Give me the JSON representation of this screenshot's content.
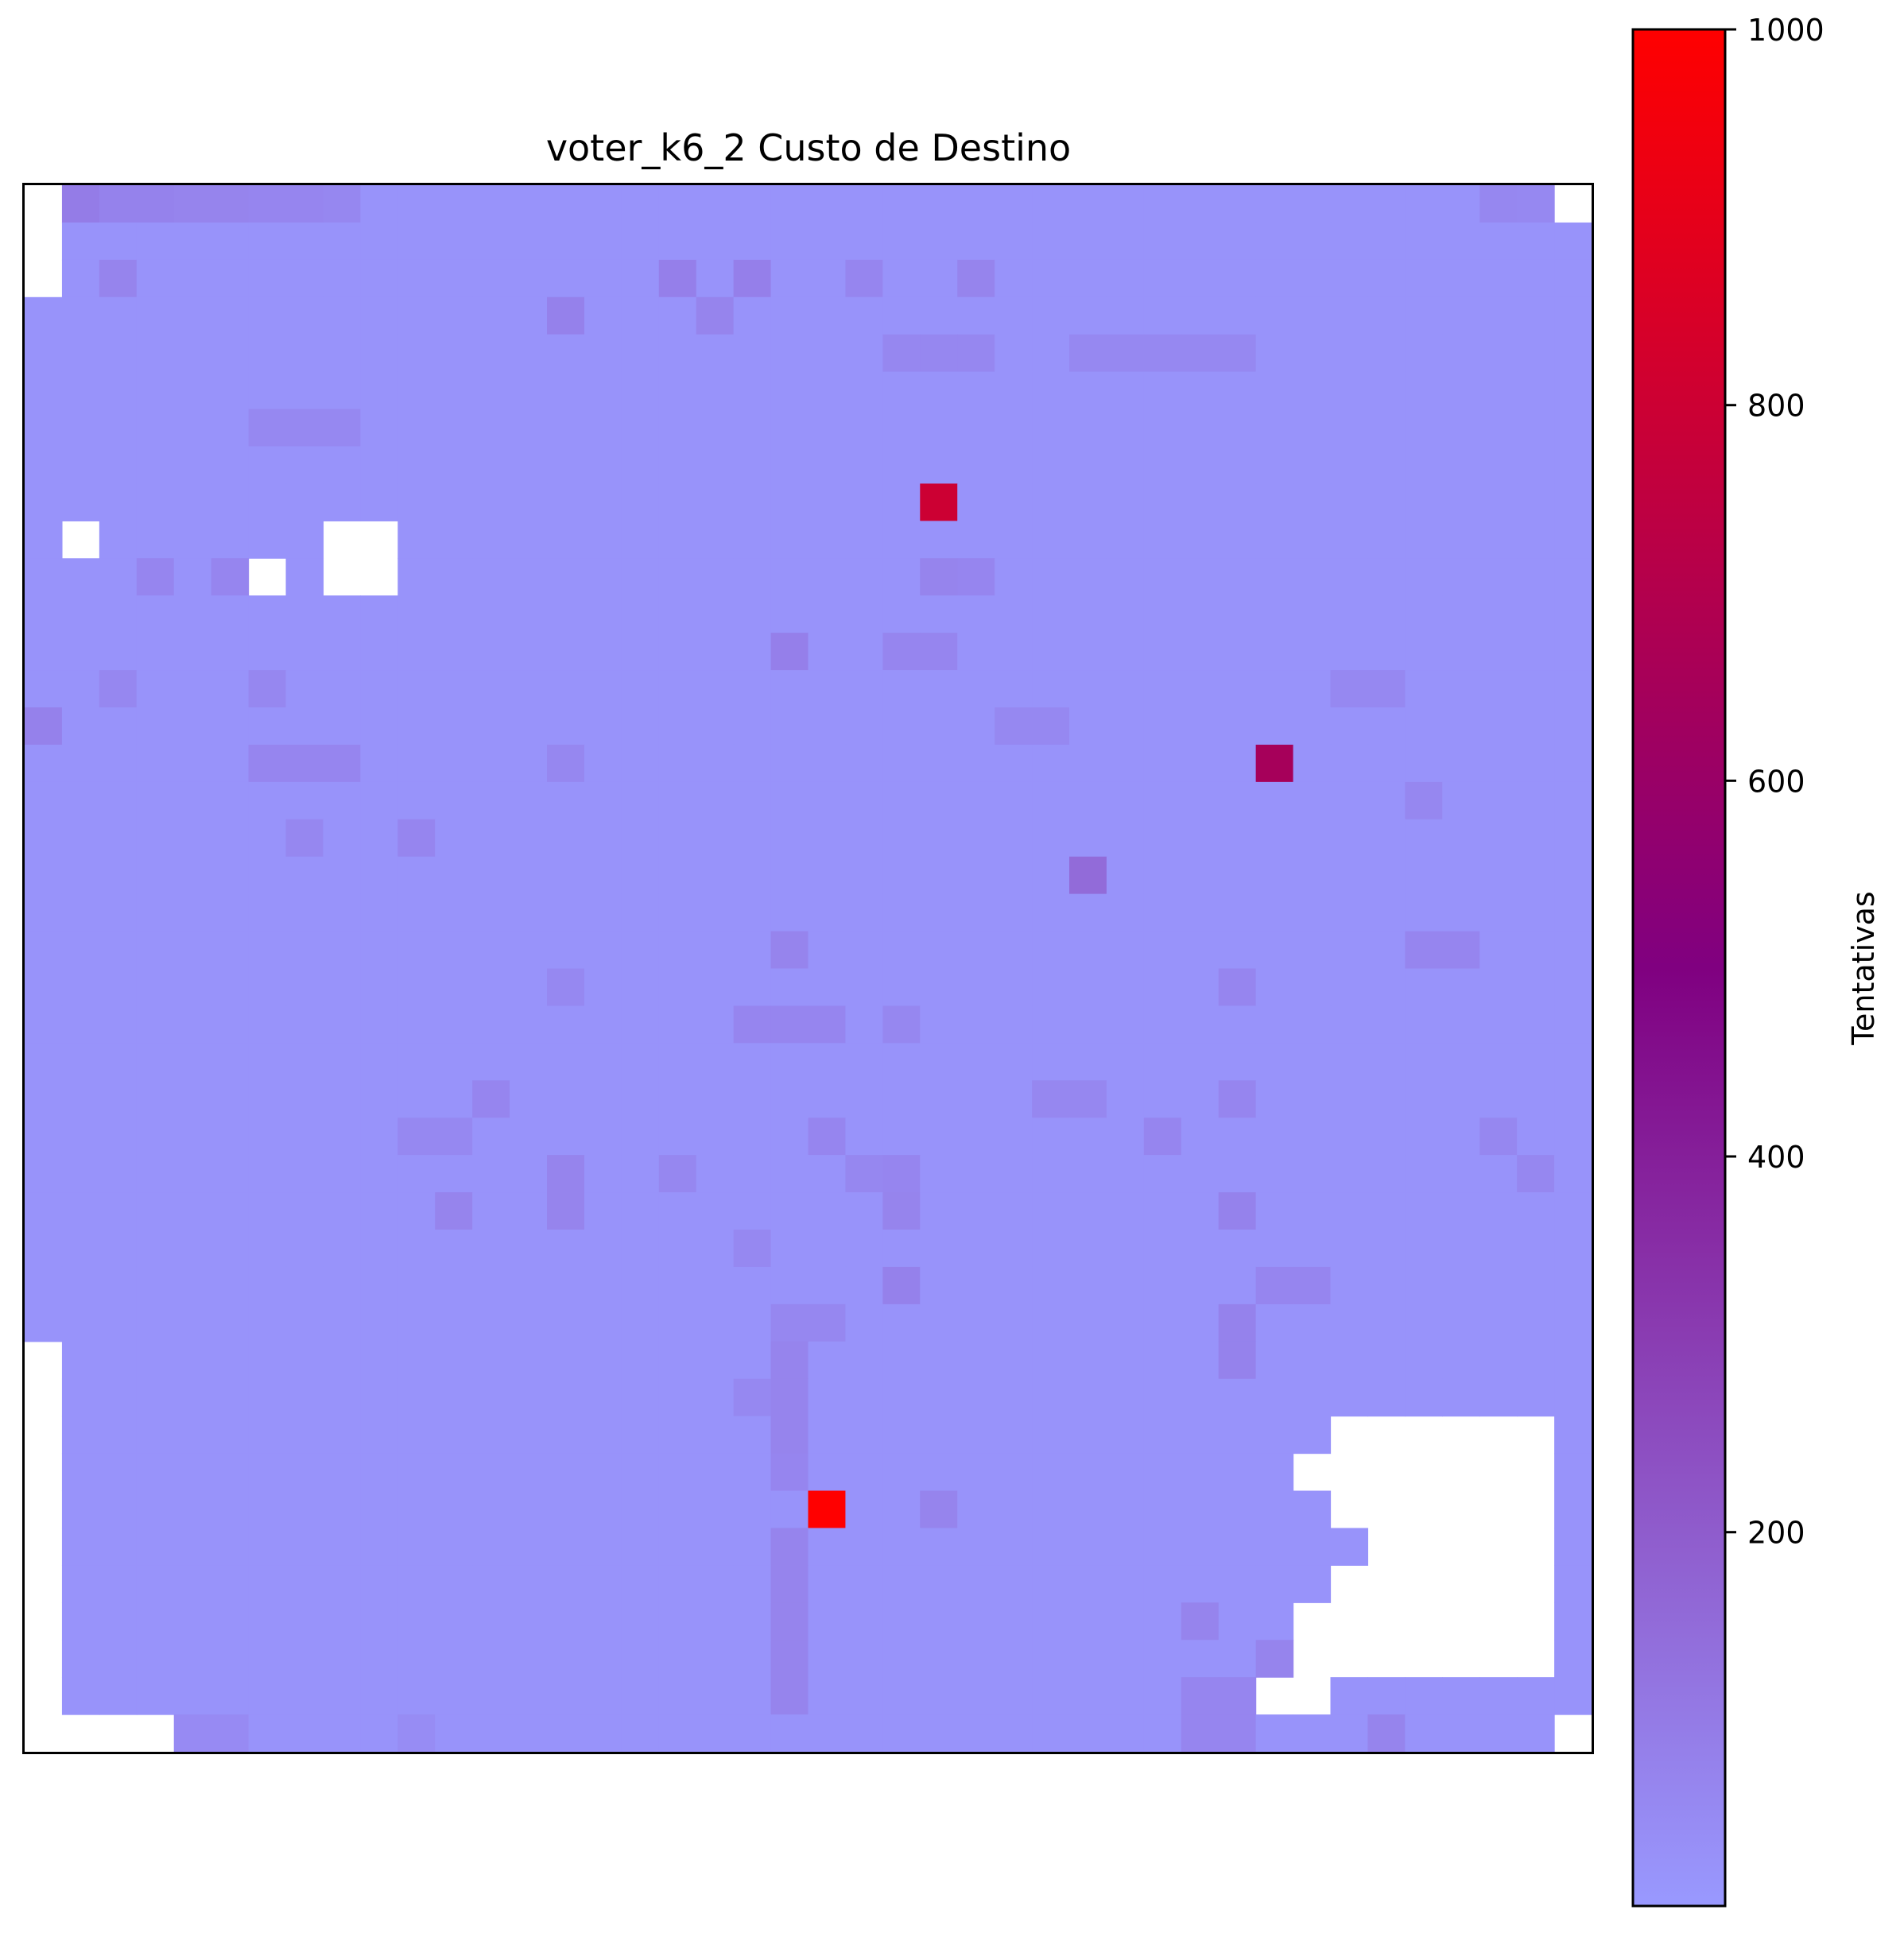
{
  "chart_data": {
    "type": "heatmap",
    "title": "voter_k6_2 Custo de Destino",
    "xlabel": "",
    "ylabel": "",
    "grid": false,
    "axis_ticks": false,
    "grid_size": [
      42,
      42
    ],
    "base_value": 20,
    "colorbar": {
      "label": "Tentativas",
      "range": [
        1,
        1000
      ],
      "ticks": [
        200,
        400,
        600,
        800,
        1000
      ],
      "colors": [
        "#9999ff",
        "#800080",
        "#ff0000"
      ],
      "placement": "right"
    },
    "empty_cells": [
      [
        0,
        0
      ],
      [
        1,
        0
      ],
      [
        2,
        0
      ],
      [
        0,
        41
      ],
      [
        9,
        1
      ],
      [
        10,
        6
      ],
      [
        9,
        8
      ],
      [
        10,
        8
      ],
      [
        9,
        9
      ],
      [
        10,
        9
      ],
      [
        31,
        0
      ],
      [
        32,
        0
      ],
      [
        33,
        0
      ],
      [
        34,
        0
      ],
      [
        35,
        0
      ],
      [
        36,
        0
      ],
      [
        37,
        0
      ],
      [
        38,
        0
      ],
      [
        39,
        0
      ],
      [
        40,
        0
      ],
      [
        41,
        0
      ],
      [
        41,
        1
      ],
      [
        41,
        2
      ],
      [
        41,
        3
      ],
      [
        41,
        41
      ],
      [
        41,
        2
      ],
      [
        41,
        3
      ],
      [
        33,
        35
      ],
      [
        33,
        36
      ],
      [
        33,
        37
      ],
      [
        33,
        38
      ],
      [
        33,
        39
      ],
      [
        33,
        40
      ],
      [
        34,
        34
      ],
      [
        34,
        35
      ],
      [
        34,
        36
      ],
      [
        34,
        37
      ],
      [
        34,
        38
      ],
      [
        34,
        39
      ],
      [
        34,
        40
      ],
      [
        35,
        35
      ],
      [
        35,
        36
      ],
      [
        35,
        37
      ],
      [
        35,
        38
      ],
      [
        35,
        39
      ],
      [
        35,
        40
      ],
      [
        36,
        36
      ],
      [
        36,
        37
      ],
      [
        36,
        38
      ],
      [
        36,
        39
      ],
      [
        36,
        40
      ],
      [
        37,
        35
      ],
      [
        37,
        36
      ],
      [
        37,
        37
      ],
      [
        37,
        38
      ],
      [
        37,
        39
      ],
      [
        37,
        40
      ],
      [
        38,
        34
      ],
      [
        38,
        35
      ],
      [
        38,
        36
      ],
      [
        38,
        37
      ],
      [
        38,
        38
      ],
      [
        38,
        39
      ],
      [
        38,
        40
      ],
      [
        39,
        34
      ],
      [
        39,
        35
      ],
      [
        39,
        36
      ],
      [
        39,
        37
      ],
      [
        39,
        38
      ],
      [
        39,
        39
      ],
      [
        39,
        40
      ],
      [
        40,
        33
      ],
      [
        40,
        34
      ]
    ],
    "cells": [
      [
        8,
        24,
        800
      ],
      [
        15,
        33,
        650
      ],
      [
        35,
        21,
        1000
      ],
      [
        18,
        28,
        150
      ],
      [
        0,
        1,
        95
      ],
      [
        0,
        2,
        75
      ],
      [
        0,
        3,
        75
      ],
      [
        0,
        4,
        70
      ],
      [
        0,
        5,
        70
      ],
      [
        0,
        6,
        65
      ],
      [
        0,
        7,
        65
      ],
      [
        0,
        8,
        60
      ],
      [
        0,
        39,
        60
      ],
      [
        0,
        40,
        55
      ],
      [
        2,
        2,
        70
      ],
      [
        2,
        17,
        85
      ],
      [
        2,
        19,
        85
      ],
      [
        2,
        22,
        65
      ],
      [
        2,
        25,
        70
      ],
      [
        3,
        14,
        80
      ],
      [
        3,
        18,
        70
      ],
      [
        4,
        23,
        60
      ],
      [
        4,
        24,
        60
      ],
      [
        4,
        25,
        60
      ],
      [
        4,
        28,
        55
      ],
      [
        4,
        29,
        55
      ],
      [
        4,
        30,
        55
      ],
      [
        4,
        31,
        55
      ],
      [
        4,
        32,
        55
      ],
      [
        6,
        6,
        55
      ],
      [
        6,
        7,
        55
      ],
      [
        6,
        8,
        55
      ],
      [
        10,
        3,
        65
      ],
      [
        10,
        5,
        65
      ],
      [
        10,
        24,
        70
      ],
      [
        10,
        25,
        65
      ],
      [
        12,
        20,
        85
      ],
      [
        12,
        23,
        65
      ],
      [
        12,
        24,
        65
      ],
      [
        13,
        2,
        60
      ],
      [
        13,
        6,
        60
      ],
      [
        13,
        35,
        55
      ],
      [
        13,
        36,
        55
      ],
      [
        14,
        0,
        80
      ],
      [
        14,
        26,
        55
      ],
      [
        14,
        27,
        55
      ],
      [
        15,
        6,
        65
      ],
      [
        15,
        7,
        65
      ],
      [
        15,
        8,
        65
      ],
      [
        15,
        14,
        60
      ],
      [
        16,
        37,
        60
      ],
      [
        17,
        7,
        60
      ],
      [
        17,
        10,
        65
      ],
      [
        20,
        20,
        70
      ],
      [
        20,
        37,
        65
      ],
      [
        20,
        38,
        65
      ],
      [
        21,
        14,
        55
      ],
      [
        21,
        32,
        65
      ],
      [
        22,
        19,
        65
      ],
      [
        22,
        20,
        65
      ],
      [
        22,
        21,
        65
      ],
      [
        22,
        23,
        60
      ],
      [
        24,
        12,
        65
      ],
      [
        24,
        27,
        60
      ],
      [
        24,
        28,
        60
      ],
      [
        24,
        32,
        65
      ],
      [
        25,
        10,
        55
      ],
      [
        25,
        11,
        55
      ],
      [
        25,
        21,
        65
      ],
      [
        25,
        30,
        65
      ],
      [
        25,
        39,
        60
      ],
      [
        26,
        14,
        70
      ],
      [
        26,
        17,
        60
      ],
      [
        26,
        22,
        60
      ],
      [
        26,
        23,
        65
      ],
      [
        26,
        40,
        60
      ],
      [
        27,
        11,
        70
      ],
      [
        27,
        14,
        70
      ],
      [
        27,
        23,
        70
      ],
      [
        27,
        32,
        75
      ],
      [
        28,
        19,
        55
      ],
      [
        29,
        23,
        80
      ],
      [
        29,
        33,
        65
      ],
      [
        29,
        34,
        65
      ],
      [
        30,
        20,
        60
      ],
      [
        30,
        21,
        60
      ],
      [
        30,
        32,
        75
      ],
      [
        31,
        20,
        70
      ],
      [
        31,
        32,
        75
      ],
      [
        32,
        19,
        55
      ],
      [
        32,
        20,
        70
      ],
      [
        33,
        20,
        70
      ],
      [
        34,
        20,
        65
      ],
      [
        35,
        24,
        70
      ],
      [
        36,
        20,
        70
      ],
      [
        37,
        20,
        70
      ],
      [
        38,
        20,
        70
      ],
      [
        38,
        31,
        70
      ],
      [
        39,
        20,
        70
      ],
      [
        39,
        33,
        70
      ],
      [
        40,
        20,
        70
      ],
      [
        40,
        31,
        65
      ],
      [
        40,
        32,
        65
      ],
      [
        41,
        4,
        50
      ],
      [
        41,
        5,
        50
      ],
      [
        41,
        10,
        45
      ],
      [
        41,
        31,
        65
      ],
      [
        41,
        32,
        65
      ],
      [
        41,
        36,
        70
      ]
    ]
  }
}
